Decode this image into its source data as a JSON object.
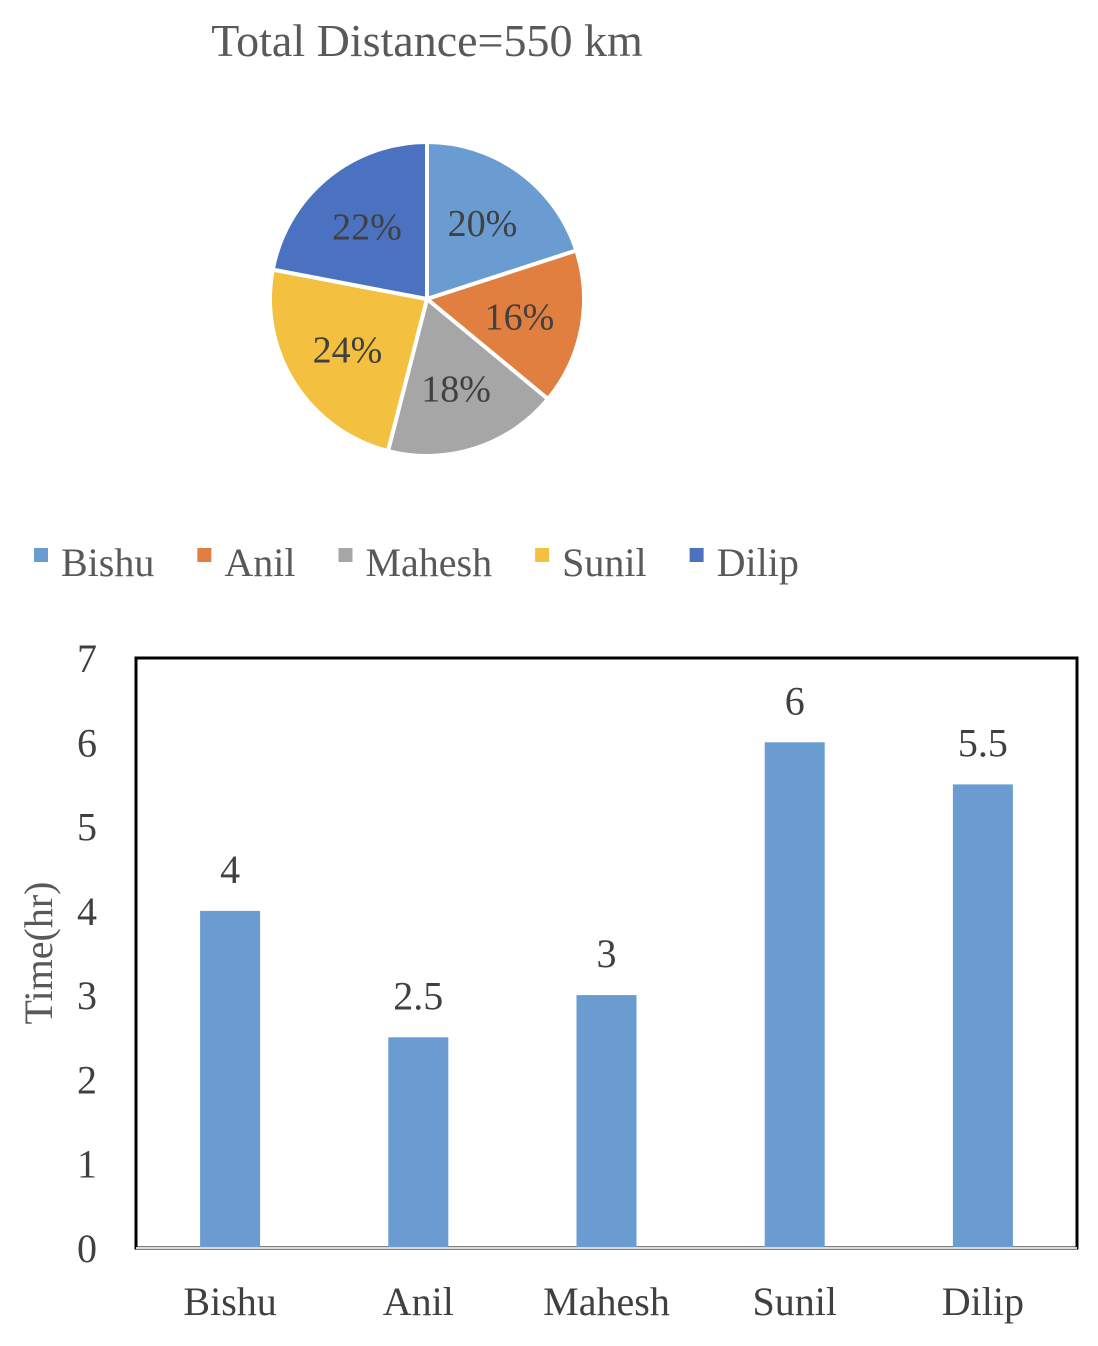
{
  "chart_data": [
    {
      "type": "pie",
      "title": "Total Distance=550 km",
      "categories": [
        "Bishu",
        "Anil",
        "Mahesh",
        "Sunil",
        "Dilip"
      ],
      "values": [
        20,
        16,
        18,
        24,
        22
      ],
      "data_labels": [
        "20%",
        "16%",
        "18%",
        "24%",
        "22%"
      ],
      "colors": [
        "#6A9BD1",
        "#E07F3F",
        "#A6A6A6",
        "#F3C03F",
        "#4A72C1"
      ],
      "legend": {
        "position": "bottom",
        "entries": [
          "Bishu",
          "Anil",
          "Mahesh",
          "Sunil",
          "Dilip"
        ]
      }
    },
    {
      "type": "bar",
      "categories": [
        "Bishu",
        "Anil",
        "Mahesh",
        "Sunil",
        "Dilip"
      ],
      "values": [
        4,
        2.5,
        3,
        6,
        5.5
      ],
      "data_labels": [
        "4",
        "2.5",
        "3",
        "6",
        "5.5"
      ],
      "xlabel": "",
      "ylabel": "Time(hr)",
      "ylim": [
        0,
        7
      ],
      "yticks": [
        "0",
        "1",
        "2",
        "3",
        "4",
        "5",
        "6",
        "7"
      ],
      "grid": false,
      "bar_color": "#6A9BD1"
    }
  ]
}
